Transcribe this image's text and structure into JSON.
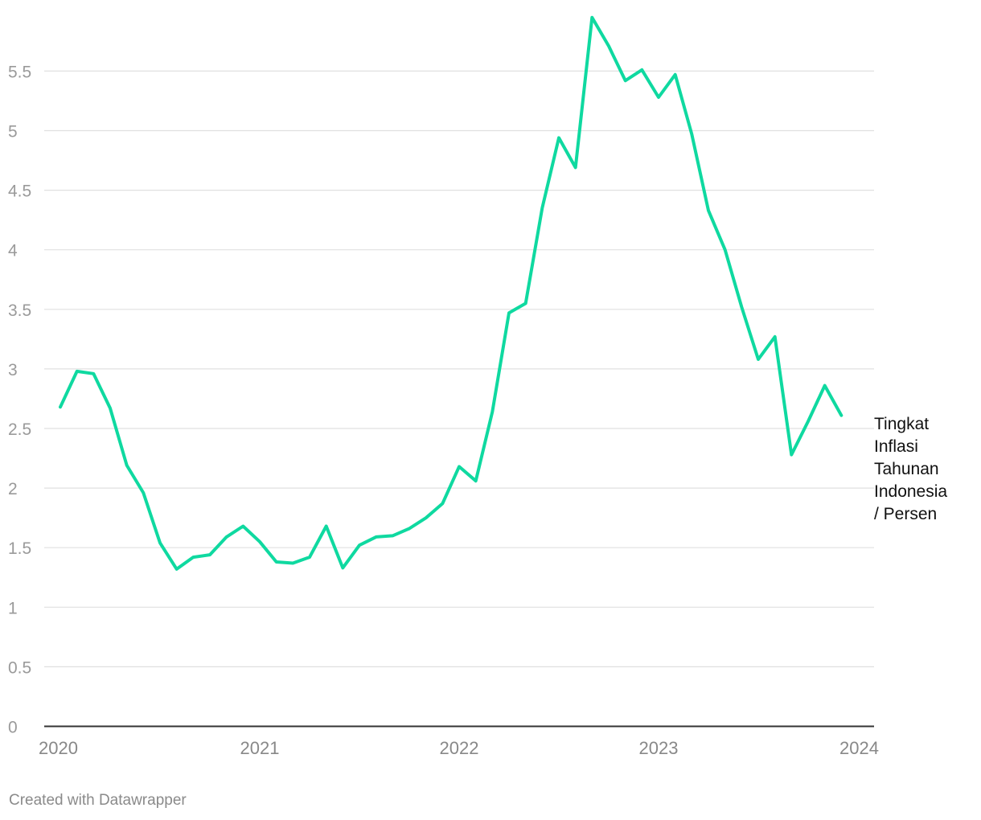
{
  "chart_data": {
    "type": "line",
    "title": "",
    "xlabel": "",
    "ylabel": "",
    "ylim": [
      0,
      6
    ],
    "grid": true,
    "yticks": [
      "0",
      "0.5",
      "1",
      "1.5",
      "2",
      "2.5",
      "3",
      "3.5",
      "4",
      "4.5",
      "5",
      "5.5"
    ],
    "xticks": [
      "2020",
      "2021",
      "2022",
      "2023",
      "2024"
    ],
    "x_range": [
      "2020-01",
      "2024-01"
    ],
    "series": [
      {
        "name": "Tingkat Inflasi Tahunan Indonesia / Persen",
        "color": "#0fd9a0",
        "x": [
          "2020-01",
          "2020-02",
          "2020-03",
          "2020-04",
          "2020-05",
          "2020-06",
          "2020-07",
          "2020-08",
          "2020-09",
          "2020-10",
          "2020-11",
          "2020-12",
          "2021-01",
          "2021-02",
          "2021-03",
          "2021-04",
          "2021-05",
          "2021-06",
          "2021-07",
          "2021-08",
          "2021-09",
          "2021-10",
          "2021-11",
          "2021-12",
          "2022-01",
          "2022-02",
          "2022-03",
          "2022-04",
          "2022-05",
          "2022-06",
          "2022-07",
          "2022-08",
          "2022-09",
          "2022-10",
          "2022-11",
          "2022-12",
          "2023-01",
          "2023-02",
          "2023-03",
          "2023-04",
          "2023-05",
          "2023-06",
          "2023-07",
          "2023-08",
          "2023-09",
          "2023-10",
          "2023-11",
          "2023-12"
        ],
        "values": [
          2.68,
          2.98,
          2.96,
          2.67,
          2.19,
          1.96,
          1.54,
          1.32,
          1.42,
          1.44,
          1.59,
          1.68,
          1.55,
          1.38,
          1.37,
          1.42,
          1.68,
          1.33,
          1.52,
          1.59,
          1.6,
          1.66,
          1.75,
          1.87,
          2.18,
          2.06,
          2.64,
          3.47,
          3.55,
          4.35,
          4.94,
          4.69,
          5.95,
          5.71,
          5.42,
          5.51,
          5.28,
          5.47,
          4.97,
          4.33,
          4.0,
          3.52,
          3.08,
          3.27,
          2.28,
          2.56,
          2.86,
          2.61
        ]
      }
    ]
  },
  "label_lines": [
    "Tingkat",
    "Inflasi",
    "Tahunan",
    "Indonesia",
    "/ Persen"
  ],
  "credit": "Created with Datawrapper"
}
